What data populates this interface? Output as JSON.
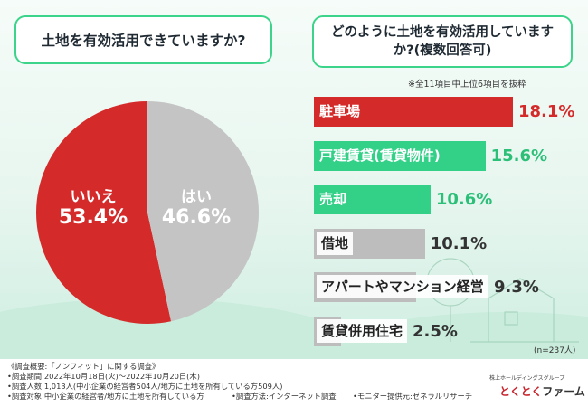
{
  "left_question": "土地を有効活用できていますか?",
  "right_question": "どのように土地を有効活用していますか?(複数回答可)",
  "subset_note": "※全11項目中上位6項目を抜粋",
  "n_note": "(n=237人)",
  "chart_data": [
    {
      "type": "pie",
      "title": "土地を有効活用できていますか?",
      "slices": [
        {
          "label": "いいえ",
          "value": 53.4,
          "display": "53.4%",
          "color": "#d42a2a"
        },
        {
          "label": "はい",
          "value": 46.6,
          "display": "46.6%",
          "color": "#c4c4c4"
        }
      ]
    },
    {
      "type": "bar",
      "orientation": "horizontal",
      "title": "どのように土地を有効活用していますか?(複数回答可)",
      "categories": [
        "駐車場",
        "戸建賃貸(賃貸物件)",
        "売却",
        "借地",
        "アパートやマンション経営",
        "賃貸併用住宅"
      ],
      "values": [
        18.1,
        15.6,
        10.6,
        10.1,
        9.3,
        2.5
      ],
      "labels": [
        "18.1%",
        "15.6%",
        "10.6%",
        "10.1%",
        "9.3%",
        "2.5%"
      ],
      "colors": [
        "#d42a2a",
        "#33d088",
        "#33d088",
        "#bdbdbd",
        "#bdbdbd",
        "#bdbdbd"
      ],
      "value_colors": [
        "#d42a2a",
        "#2bbf78",
        "#2bbf78",
        "#333333",
        "#333333",
        "#333333"
      ],
      "xlim": [
        0,
        18.1
      ]
    }
  ],
  "footer": {
    "heading": "《調査概要:「ノンフィット」に関する調査》",
    "period": "•調査期間:2022年10月18日(火)〜2022年10月20日(木)",
    "people": "•調査人数:1,013人(中小企業の経営者504人/地方に土地を所有している方509人)",
    "target": "•調査対象:中小企業の経営者/地方に土地を所有している方",
    "method": "•調査方法:インターネット調査",
    "provider": "•モニター提供元:ゼネラルリサーチ"
  },
  "brand": {
    "small": "株上ホールディングスグループ",
    "name_red": "とくとく",
    "name_dark": "ファーム"
  }
}
